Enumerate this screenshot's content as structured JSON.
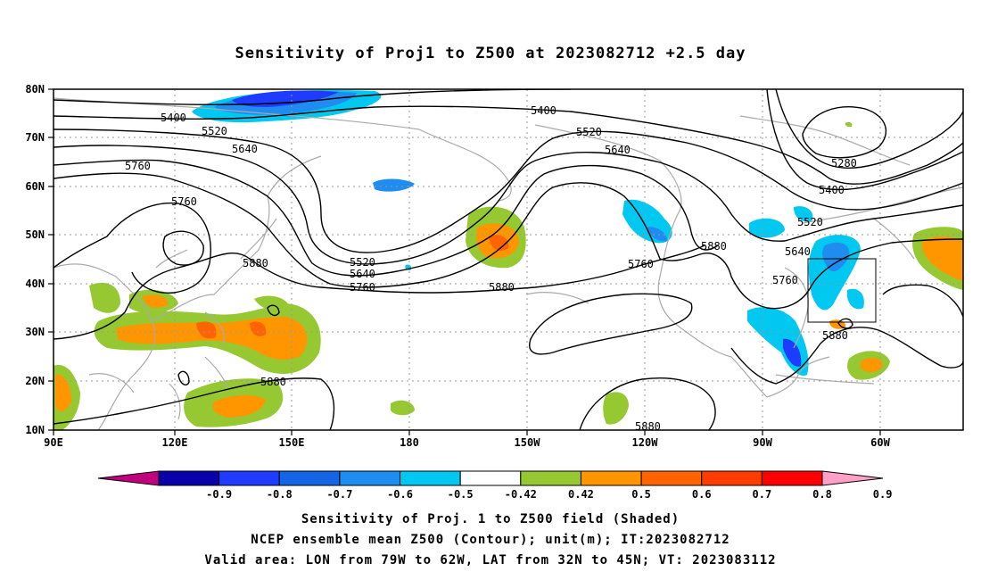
{
  "title": "Sensitivity of Proj1 to Z500 at 2023082712 +2.5 day",
  "lat_labels": [
    "80N",
    "70N",
    "60N",
    "50N",
    "40N",
    "30N",
    "20N",
    "10N"
  ],
  "lon_labels": [
    "90E",
    "120E",
    "150E",
    "180",
    "150W",
    "120W",
    "90W",
    "60W"
  ],
  "contour_labels": [
    "5400",
    "5520",
    "5640",
    "5760",
    "5760",
    "5880",
    "5400",
    "5520",
    "5640",
    "5280",
    "5400",
    "5520",
    "5640",
    "5760",
    "5880",
    "5760",
    "5880",
    "5520",
    "5640",
    "5760",
    "5880",
    "5880",
    "5880"
  ],
  "colorbar": {
    "labels": [
      "-0.9",
      "-0.8",
      "-0.7",
      "-0.6",
      "-0.5",
      "-0.42",
      "0.42",
      "0.5",
      "0.6",
      "0.7",
      "0.8",
      "0.9"
    ],
    "colors": [
      "#c0007f",
      "#0a00aa",
      "#1e3cff",
      "#1464e6",
      "#1e8cf0",
      "#00c8f0",
      "#ffffff",
      "#96c832",
      "#ff9600",
      "#ff6400",
      "#ff3c00",
      "#ff0000",
      "#ffa0c8"
    ]
  },
  "captions": {
    "line1": "Sensitivity of Proj. 1 to Z500 field (Shaded)",
    "line2": "NCEP ensemble mean Z500 (Contour); unit(m); IT:2023082712",
    "line3": "Valid area: LON from 79W to 62W, LAT from 32N to 45N; VT: 2023083112"
  }
}
